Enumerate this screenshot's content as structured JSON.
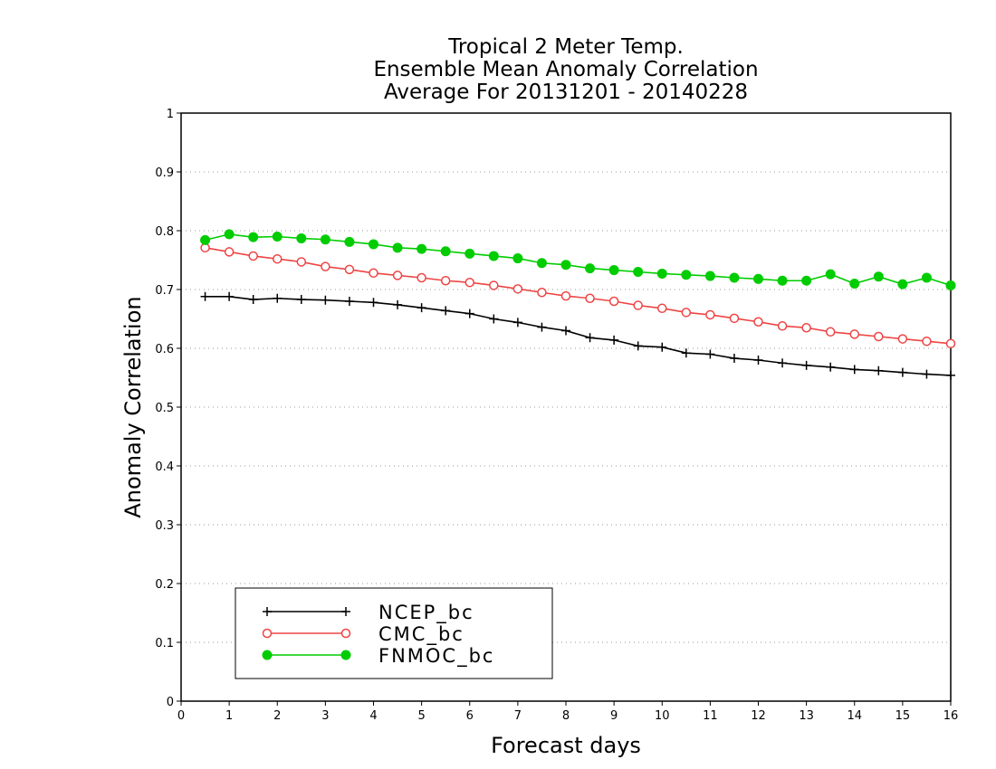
{
  "chart_data": {
    "type": "line",
    "title": [
      "Tropical 2 Meter Temp.",
      "Ensemble Mean Anomaly Correlation",
      "Average For 20131201 - 20140228"
    ],
    "xlabel": "Forecast days",
    "ylabel": "Anomaly Correlation",
    "xlim": [
      0,
      16
    ],
    "ylim": [
      0,
      1
    ],
    "xticks": [
      "0",
      "1",
      "2",
      "3",
      "4",
      "5",
      "6",
      "7",
      "8",
      "9",
      "10",
      "11",
      "12",
      "13",
      "14",
      "15",
      "16"
    ],
    "yticks": [
      "0",
      "0.1",
      "0.2",
      "0.3",
      "0.4",
      "0.5",
      "0.6",
      "0.7",
      "0.8",
      "0.9",
      "1"
    ],
    "grid": "horizontal dotted",
    "legend_position": "bottom-left",
    "x": [
      0.5,
      1,
      1.5,
      2,
      2.5,
      3,
      3.5,
      4,
      4.5,
      5,
      5.5,
      6,
      6.5,
      7,
      7.5,
      8,
      8.5,
      9,
      9.5,
      10,
      10.5,
      11,
      11.5,
      12,
      12.5,
      13,
      13.5,
      14,
      14.5,
      15,
      15.5,
      16
    ],
    "series": [
      {
        "name": "NCEP_bc",
        "color": "#000000",
        "marker": "plus",
        "values": [
          0.688,
          0.688,
          0.683,
          0.685,
          0.683,
          0.682,
          0.68,
          0.678,
          0.674,
          0.669,
          0.664,
          0.659,
          0.65,
          0.644,
          0.636,
          0.63,
          0.618,
          0.614,
          0.604,
          0.602,
          0.592,
          0.59,
          0.583,
          0.58,
          0.575,
          0.571,
          0.568,
          0.564,
          0.562,
          0.559,
          0.556,
          0.554
        ]
      },
      {
        "name": "CMC_bc",
        "color": "#ee4444",
        "marker": "open-circle",
        "values": [
          0.771,
          0.764,
          0.757,
          0.752,
          0.747,
          0.739,
          0.734,
          0.728,
          0.724,
          0.72,
          0.715,
          0.712,
          0.707,
          0.701,
          0.695,
          0.689,
          0.685,
          0.68,
          0.673,
          0.668,
          0.661,
          0.657,
          0.651,
          0.645,
          0.638,
          0.635,
          0.628,
          0.624,
          0.62,
          0.616,
          0.612,
          0.608
        ]
      },
      {
        "name": "FNMOC_bc",
        "color": "#00cc00",
        "marker": "filled-circle",
        "values": [
          0.784,
          0.794,
          0.789,
          0.79,
          0.787,
          0.785,
          0.781,
          0.777,
          0.771,
          0.769,
          0.765,
          0.761,
          0.757,
          0.753,
          0.745,
          0.742,
          0.736,
          0.733,
          0.73,
          0.727,
          0.725,
          0.723,
          0.72,
          0.718,
          0.715,
          0.715,
          0.726,
          0.71,
          0.722,
          0.709,
          0.72,
          0.707
        ]
      }
    ]
  }
}
